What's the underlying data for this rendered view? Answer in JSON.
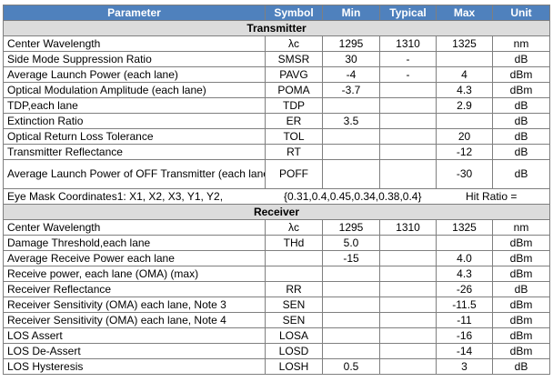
{
  "header": {
    "parameter": "Parameter",
    "symbol": "Symbol",
    "min": "Min",
    "typical": "Typical",
    "max": "Max",
    "unit": "Unit"
  },
  "transmitter": {
    "title": "Transmitter",
    "rows": [
      {
        "parameter": "Center Wavelength",
        "symbol": "λc",
        "min": "1295",
        "typical": "1310",
        "max": "1325",
        "unit": "nm"
      },
      {
        "parameter": "Side Mode Suppression Ratio",
        "symbol": "SMSR",
        "min": "30",
        "typical": "-",
        "max": "",
        "unit": "dB"
      },
      {
        "parameter": "Average Launch Power (each lane)",
        "symbol": "PAVG",
        "min": "-4",
        "typical": "-",
        "max": "4",
        "unit": "dBm"
      },
      {
        "parameter": "Optical Modulation Amplitude (each lane)",
        "symbol": "POMA",
        "min": "-3.7",
        "typical": "",
        "max": "4.3",
        "unit": "dBm"
      },
      {
        "parameter": "TDP,each lane",
        "symbol": "TDP",
        "min": "",
        "typical": "",
        "max": "2.9",
        "unit": "dB"
      },
      {
        "parameter": "Extinction Ratio",
        "symbol": "ER",
        "min": "3.5",
        "typical": "",
        "max": "",
        "unit": "dB"
      },
      {
        "parameter": "Optical Return Loss Tolerance",
        "symbol": "TOL",
        "min": "",
        "typical": "",
        "max": "20",
        "unit": "dB"
      },
      {
        "parameter": "Transmitter Reflectance",
        "symbol": "RT",
        "min": "",
        "typical": "",
        "max": "-12",
        "unit": "dB"
      },
      {
        "parameter": "Average Launch Power of OFF Transmitter (each lane)",
        "symbol": "POFF",
        "min": "",
        "typical": "",
        "max": "-30",
        "unit": "dB"
      }
    ],
    "eye_mask": {
      "label": "Eye Mask Coordinates1: X1, X2, X3, Y1, Y2,",
      "values": "{0.31,0.4,0.45,0.34,0.38,0.4}",
      "hit_ratio": "Hit Ratio ="
    }
  },
  "receiver": {
    "title": "Receiver",
    "rows": [
      {
        "parameter": "Center Wavelength",
        "symbol": "λc",
        "min": "1295",
        "typical": "1310",
        "max": "1325",
        "unit": "nm"
      },
      {
        "parameter": "Damage Threshold,each lane",
        "symbol": "THd",
        "min": "5.0",
        "typical": "",
        "max": "",
        "unit": "dBm"
      },
      {
        "parameter": "Average Receive Power each lane",
        "symbol": "",
        "min": "-15",
        "typical": "",
        "max": "4.0",
        "unit": "dBm"
      },
      {
        "parameter": "Receive power, each lane (OMA) (max)",
        "symbol": "",
        "min": "",
        "typical": "",
        "max": "4.3",
        "unit": "dBm"
      },
      {
        "parameter": "Receiver Reflectance",
        "symbol": "RR",
        "min": "",
        "typical": "",
        "max": "-26",
        "unit": "dB"
      },
      {
        "parameter": "Receiver Sensitivity (OMA) each lane, Note 3",
        "symbol": "SEN",
        "min": "",
        "typical": "",
        "max": "-11.5",
        "unit": "dBm"
      },
      {
        "parameter": "Receiver Sensitivity (OMA) each lane, Note 4",
        "symbol": "SEN",
        "min": "",
        "typical": "",
        "max": "-11",
        "unit": "dBm"
      },
      {
        "parameter": "LOS Assert",
        "symbol": "LOSA",
        "min": "",
        "typical": "",
        "max": "-16",
        "unit": "dBm"
      },
      {
        "parameter": "LOS De-Assert",
        "symbol": "LOSD",
        "min": "",
        "typical": "",
        "max": "-14",
        "unit": "dBm"
      },
      {
        "parameter": "LOS Hysteresis",
        "symbol": "LOSH",
        "min": "0.5",
        "typical": "",
        "max": "3",
        "unit": "dB"
      }
    ]
  }
}
